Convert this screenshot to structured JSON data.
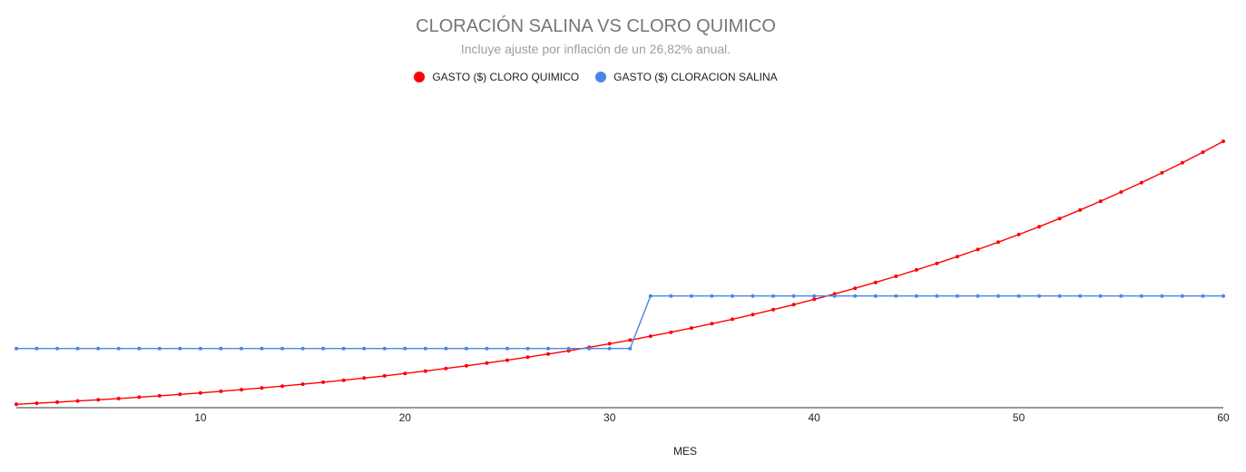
{
  "chart_data": {
    "type": "line",
    "title": "CLORACIÓN SALINA VS CLORO QUIMICO",
    "subtitle": "Incluye ajuste por inflación de un 26,82% anual.",
    "xlabel": "MES",
    "ylabel": "",
    "xlim": [
      1,
      60
    ],
    "x_ticks": [
      10,
      20,
      30,
      40,
      50,
      60
    ],
    "legend_position": "top",
    "grid": false,
    "series": [
      {
        "name": "GASTO ($) CLORO QUIMICO",
        "color": "#ff0000",
        "x": [
          1,
          2,
          3,
          4,
          5,
          6,
          7,
          8,
          9,
          10,
          11,
          12,
          13,
          14,
          15,
          16,
          17,
          18,
          19,
          20,
          21,
          22,
          23,
          24,
          25,
          26,
          27,
          28,
          29,
          30,
          31,
          32,
          33,
          34,
          35,
          36,
          37,
          38,
          39,
          40,
          41,
          42,
          43,
          44,
          45,
          46,
          47,
          48,
          49,
          50,
          51,
          52,
          53,
          54,
          55,
          56,
          57,
          58,
          59,
          60
        ],
        "values": [
          0.0,
          2.0,
          4.1,
          6.3,
          8.6,
          11.0,
          13.5,
          16.1,
          18.8,
          21.7,
          24.7,
          27.8,
          31.1,
          34.5,
          38.1,
          41.9,
          45.8,
          49.9,
          54.1,
          58.6,
          63.2,
          68.1,
          73.1,
          78.4,
          83.9,
          89.6,
          95.6,
          101.8,
          108.3,
          115.1,
          122.1,
          129.4,
          137.0,
          144.9,
          153.2,
          161.7,
          170.6,
          179.9,
          189.5,
          199.5,
          209.9,
          220.6,
          231.8,
          243.4,
          255.5,
          268.0,
          280.9,
          294.4,
          308.3,
          322.8,
          337.8,
          353.3,
          369.4,
          386.1,
          403.5,
          421.4,
          440.0,
          459.3,
          479.3,
          500.0
        ]
      },
      {
        "name": "GASTO ($) CLORACION SALINA",
        "color": "#4a86e8",
        "x": [
          1,
          2,
          3,
          4,
          5,
          6,
          7,
          8,
          9,
          10,
          11,
          12,
          13,
          14,
          15,
          16,
          17,
          18,
          19,
          20,
          21,
          22,
          23,
          24,
          25,
          26,
          27,
          28,
          29,
          30,
          31,
          32,
          33,
          34,
          35,
          36,
          37,
          38,
          39,
          40,
          41,
          42,
          43,
          44,
          45,
          46,
          47,
          48,
          49,
          50,
          51,
          52,
          53,
          54,
          55,
          56,
          57,
          58,
          59,
          60
        ],
        "values": [
          106,
          106,
          106,
          106,
          106,
          106,
          106,
          106,
          106,
          106,
          106,
          106,
          106,
          106,
          106,
          106,
          106,
          106,
          106,
          106,
          106,
          106,
          106,
          106,
          106,
          106,
          106,
          106,
          106,
          106,
          106,
          206,
          206,
          206,
          206,
          206,
          206,
          206,
          206,
          206,
          206,
          206,
          206,
          206,
          206,
          206,
          206,
          206,
          206,
          206,
          206,
          206,
          206,
          206,
          206,
          206,
          206,
          206,
          206,
          206
        ]
      }
    ],
    "ylim": [
      -3,
      500
    ]
  }
}
